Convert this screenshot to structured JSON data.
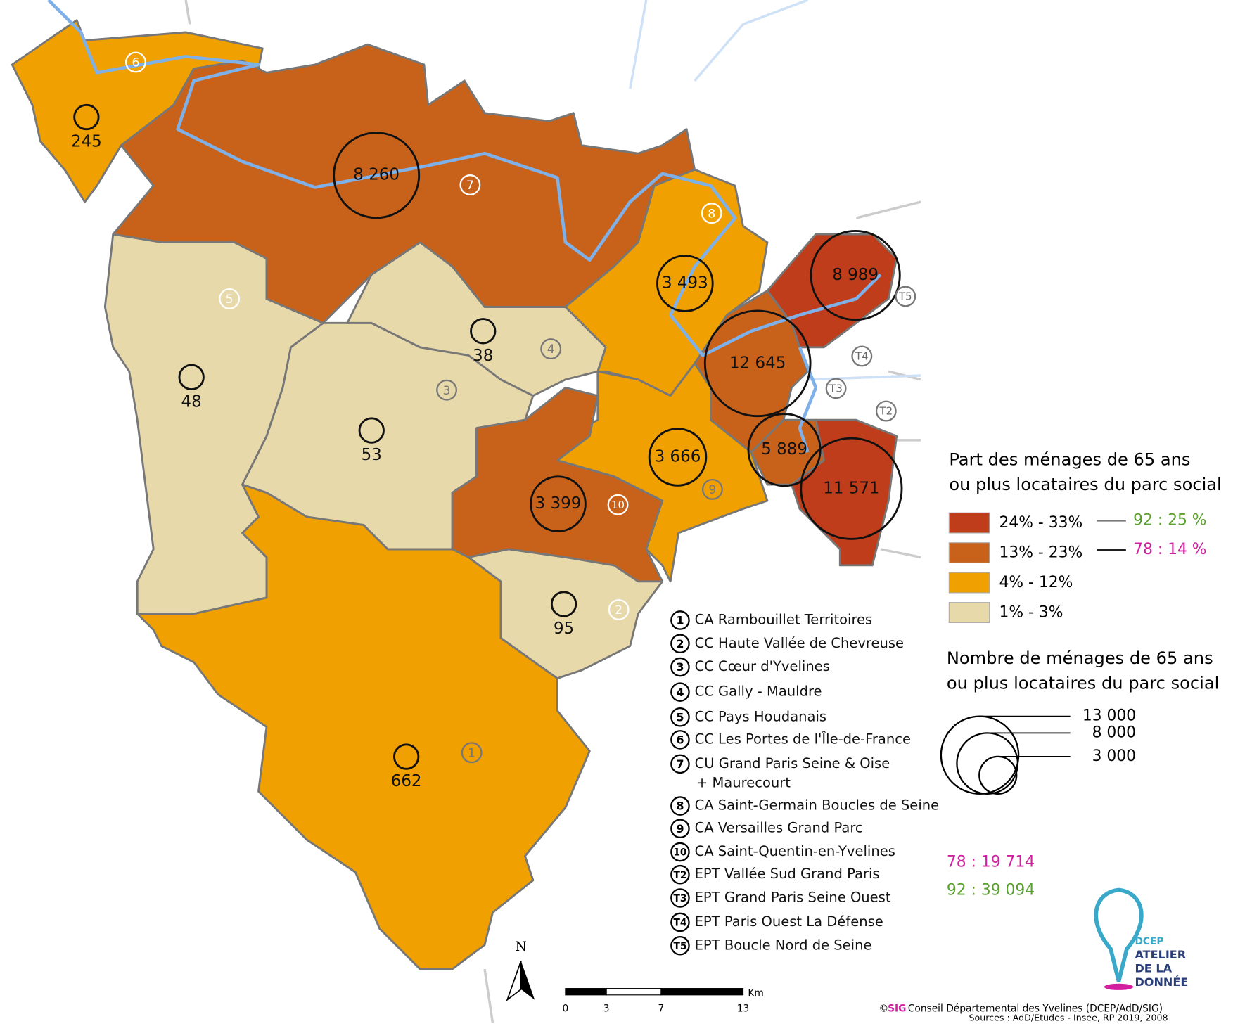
{
  "legend_share": {
    "title_lines": [
      "Part des ménages de 65 ans",
      "ou plus locataires du parc social"
    ],
    "classes": [
      {
        "label": "24% - 33%",
        "color": "#bf3d1a"
      },
      {
        "label": "13% - 23%",
        "color": "#c8621b"
      },
      {
        "label": "4% - 12%",
        "color": "#f0a000"
      },
      {
        "label": "1% - 3%",
        "color": "#e8d9ab"
      }
    ],
    "comparisons": [
      {
        "label": "92 : 25 %",
        "color": "#5aa02c"
      },
      {
        "label": "78 : 14 %",
        "color": "#d020a0"
      }
    ]
  },
  "legend_count": {
    "title_lines": [
      "Nombre de ménages de 65 ans",
      "ou plus locataires du parc social"
    ],
    "sizes": [
      {
        "value": 13000,
        "label": "13 000"
      },
      {
        "value": 8000,
        "label": "8 000"
      },
      {
        "value": 3000,
        "label": "3 000"
      }
    ],
    "totals": [
      {
        "label": "78 : 19 714",
        "color": "#d020a0"
      },
      {
        "label": "92 : 39 094",
        "color": "#5aa02c"
      }
    ]
  },
  "territories": [
    {
      "code": "1",
      "name": "CA Rambouillet Territoires",
      "color": "#f0a000",
      "households": {
        "value": 662,
        "label": "662"
      }
    },
    {
      "code": "2",
      "name": "CC Haute Vallée de Chevreuse",
      "color": "#e8d9ab",
      "households": {
        "value": 95,
        "label": "95"
      }
    },
    {
      "code": "3",
      "name": "CC Cœur d'Yvelines",
      "color": "#e8d9ab",
      "households": {
        "value": 53,
        "label": "53"
      }
    },
    {
      "code": "4",
      "name": "CC Gally - Mauldre",
      "color": "#e8d9ab",
      "households": {
        "value": 38,
        "label": "38"
      }
    },
    {
      "code": "5",
      "name": "CC Pays Houdanais",
      "color": "#e8d9ab",
      "households": {
        "value": 48,
        "label": "48"
      }
    },
    {
      "code": "6",
      "name": "CC Les Portes de l'Île-de-France",
      "color": "#f0a000",
      "households": {
        "value": 245,
        "label": "245"
      }
    },
    {
      "code": "7",
      "name": "CU Grand Paris Seine & Oise",
      "name_continued": "+ Maurecourt",
      "color": "#c8621b",
      "households": {
        "value": 8260,
        "label": "8 260"
      }
    },
    {
      "code": "8",
      "name": "CA Saint-Germain Boucles de Seine",
      "color": "#f0a000",
      "households": {
        "value": 3493,
        "label": "3 493"
      }
    },
    {
      "code": "9",
      "name": "CA Versailles Grand Parc",
      "color": "#f0a000",
      "households": {
        "value": 3666,
        "label": "3 666"
      }
    },
    {
      "code": "10",
      "name": "CA Saint-Quentin-en-Yvelines",
      "color": "#c8621b",
      "households": {
        "value": 3399,
        "label": "3 399"
      }
    },
    {
      "code": "T2",
      "name": "EPT Vallée Sud Grand Paris",
      "color": "#bf3d1a",
      "households": {
        "value": 11571,
        "label": "11 571"
      }
    },
    {
      "code": "T3",
      "name": "EPT Grand Paris Seine Ouest",
      "color": "#c8621b",
      "households": {
        "value": 5889,
        "label": "5 889"
      }
    },
    {
      "code": "T4",
      "name": "EPT Paris Ouest La Défense",
      "color": "#c8621b",
      "households": {
        "value": 12645,
        "label": "12 645"
      }
    },
    {
      "code": "T5",
      "name": "EPT Boucle Nord de Seine",
      "color": "#bf3d1a",
      "households": {
        "value": 8989,
        "label": "8 989"
      }
    }
  ],
  "scale_bar": {
    "ticks": [
      0,
      3,
      7,
      13
    ],
    "unit": "Km"
  },
  "north": "N",
  "credits": {
    "copyright": "©",
    "logo": "SIG",
    "text": "Conseil Départemental des Yvelines (DCEP/AdD/SIG)",
    "sources": "Sources : AdD/Etudes - Insee, RP 2019, 2008"
  },
  "brand": {
    "lines": [
      "DCEP",
      "ATELIER",
      "DE LA",
      "DONNÉE"
    ]
  }
}
